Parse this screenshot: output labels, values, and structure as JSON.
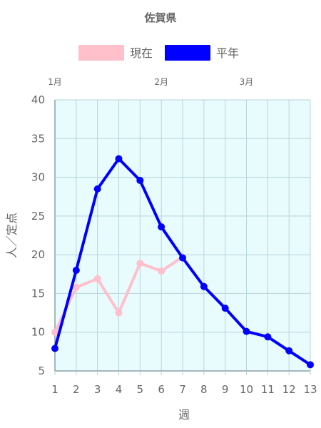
{
  "chart_data": {
    "type": "line",
    "title": "佐賀県",
    "xlabel": "週",
    "ylabel": "人／定点",
    "ylim": [
      5,
      40
    ],
    "yticks": [
      5,
      10,
      15,
      20,
      25,
      30,
      35,
      40
    ],
    "categories": [
      "1",
      "2",
      "3",
      "4",
      "5",
      "6",
      "7",
      "8",
      "9",
      "10",
      "11",
      "12",
      "13"
    ],
    "months": [
      {
        "label": "1月",
        "x": 1
      },
      {
        "label": "2月",
        "x": 6
      },
      {
        "label": "3月",
        "x": 10
      }
    ],
    "background_color": "#e8fcfd",
    "grid": true,
    "legend_position": "top",
    "series": [
      {
        "name": "現在",
        "color": "#ffc0cb",
        "values": [
          10.0,
          15.8,
          16.9,
          12.5,
          18.9,
          17.9,
          19.7,
          null,
          null,
          null,
          null,
          null,
          null
        ]
      },
      {
        "name": "平年",
        "color": "#0000ff",
        "values": [
          7.9,
          18.0,
          28.5,
          32.4,
          29.6,
          23.6,
          19.6,
          15.9,
          13.1,
          10.1,
          9.4,
          7.6,
          5.8
        ]
      }
    ]
  }
}
